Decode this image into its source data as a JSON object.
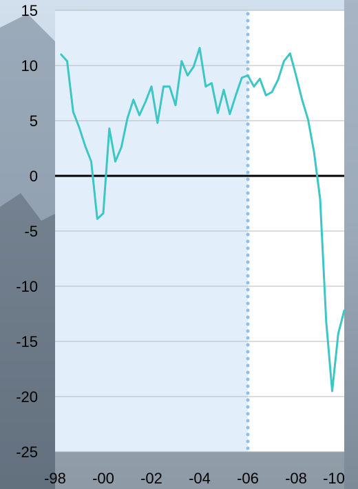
{
  "chart_data": {
    "type": "line",
    "title": "",
    "xlabel": "",
    "ylabel": "",
    "ylim": [
      -25,
      15
    ],
    "xlim": [
      1998.0,
      2010.0
    ],
    "yticks": [
      15,
      10,
      5,
      0,
      -5,
      -10,
      -15,
      -20,
      -25
    ],
    "xticks": [
      {
        "x": 1998,
        "label": "-98"
      },
      {
        "x": 2000,
        "label": "-00"
      },
      {
        "x": 2002,
        "label": "-02"
      },
      {
        "x": 2004,
        "label": "-04"
      },
      {
        "x": 2006,
        "label": "-06"
      },
      {
        "x": 2008,
        "label": "-08"
      },
      {
        "x": 2010,
        "label": "-10"
      }
    ],
    "forecast_divider_x": 2006.0,
    "shaded_region": [
      1998.0,
      2006.0
    ],
    "grid": true,
    "colors": {
      "line": "#3cc6c6",
      "divider": "#8cc0e8",
      "shaded": "#e2effb",
      "plot_bg": "#ffffff",
      "zero_line": "#000000",
      "grid": "#b8b8b8"
    },
    "series": [
      {
        "values": [
          [
            1998.25,
            11.0
          ],
          [
            1998.5,
            10.4
          ],
          [
            1998.75,
            5.8
          ],
          [
            1999.0,
            4.4
          ],
          [
            1999.25,
            2.7
          ],
          [
            1999.5,
            1.3
          ],
          [
            1999.75,
            -3.9
          ],
          [
            2000.0,
            -3.4
          ],
          [
            2000.25,
            4.3
          ],
          [
            2000.5,
            1.3
          ],
          [
            2000.75,
            2.6
          ],
          [
            2001.0,
            5.2
          ],
          [
            2001.25,
            6.9
          ],
          [
            2001.5,
            5.5
          ],
          [
            2001.75,
            6.7
          ],
          [
            2002.0,
            8.1
          ],
          [
            2002.25,
            4.8
          ],
          [
            2002.5,
            8.1
          ],
          [
            2002.75,
            8.1
          ],
          [
            2003.0,
            6.4
          ],
          [
            2003.25,
            10.4
          ],
          [
            2003.5,
            9.1
          ],
          [
            2003.75,
            9.9
          ],
          [
            2004.0,
            11.6
          ],
          [
            2004.25,
            8.1
          ],
          [
            2004.5,
            8.4
          ],
          [
            2004.75,
            5.7
          ],
          [
            2005.0,
            7.8
          ],
          [
            2005.25,
            5.6
          ],
          [
            2005.5,
            7.3
          ],
          [
            2005.75,
            8.9
          ],
          [
            2006.0,
            9.1
          ],
          [
            2006.25,
            8.1
          ],
          [
            2006.5,
            8.8
          ],
          [
            2006.75,
            7.3
          ],
          [
            2007.0,
            7.6
          ],
          [
            2007.25,
            8.7
          ],
          [
            2007.5,
            10.4
          ],
          [
            2007.75,
            11.1
          ],
          [
            2008.0,
            9.1
          ],
          [
            2008.25,
            6.9
          ],
          [
            2008.5,
            5.1
          ],
          [
            2008.75,
            2.1
          ],
          [
            2009.0,
            -2.1
          ],
          [
            2009.25,
            -13.2
          ],
          [
            2009.5,
            -19.5
          ],
          [
            2009.75,
            -14.3
          ],
          [
            2010.0,
            -12.2
          ]
        ]
      }
    ]
  }
}
